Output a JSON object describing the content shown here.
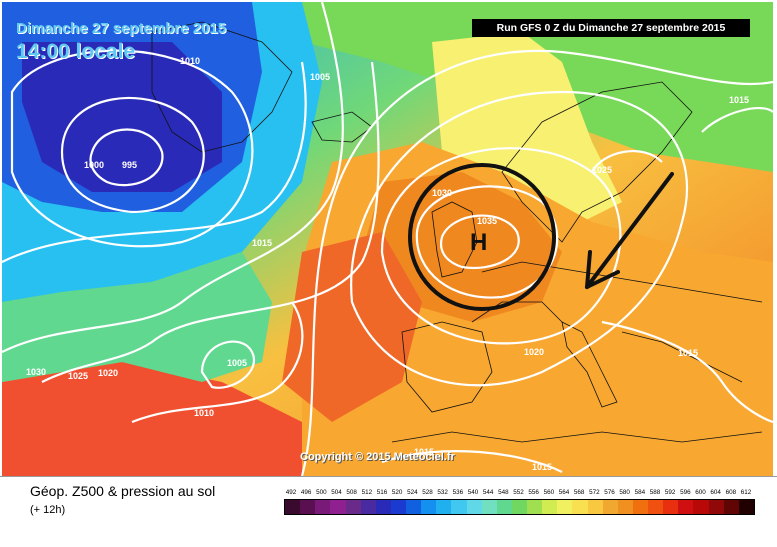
{
  "header": {
    "date": "Dimanche 27 septembre 2015",
    "time": "14:00 locale",
    "run": "Run GFS 0 Z du Dimanche 27 septembre 2015"
  },
  "map": {
    "high_marker": "H",
    "copyright": "Copyright © 2015 Meteociel.fr",
    "isobar_labels": [
      "1010",
      "1005",
      "1000",
      "995",
      "1015",
      "1030",
      "1025",
      "1020",
      "1005",
      "1010",
      "1030",
      "1035",
      "1025",
      "1015",
      "1020",
      "1015",
      "1015",
      "1015"
    ]
  },
  "legend": {
    "title": "Géop. Z500 & pression au sol",
    "subtitle": "(+ 12h)",
    "scale_labels": [
      "492",
      "496",
      "500",
      "504",
      "508",
      "512",
      "516",
      "520",
      "524",
      "528",
      "532",
      "536",
      "540",
      "544",
      "548",
      "552",
      "556",
      "560",
      "564",
      "568",
      "572",
      "576",
      "580",
      "584",
      "588",
      "592",
      "596",
      "600",
      "604",
      "608",
      "612"
    ],
    "scale_colors": [
      "#3a0a2e",
      "#5a1050",
      "#7a1a78",
      "#902090",
      "#6a2a8a",
      "#4a2aa0",
      "#2a2ab8",
      "#1a3ad0",
      "#1060e0",
      "#1490f0",
      "#20b0f0",
      "#40c8f0",
      "#60d8e8",
      "#70e0c0",
      "#60d890",
      "#70d860",
      "#a0e050",
      "#d0ec50",
      "#f0f060",
      "#f8e050",
      "#f8c840",
      "#f0a830",
      "#f09020",
      "#f07010",
      "#f05010",
      "#e83010",
      "#d01010",
      "#b80808",
      "#900808",
      "#600404",
      "#200000"
    ]
  }
}
